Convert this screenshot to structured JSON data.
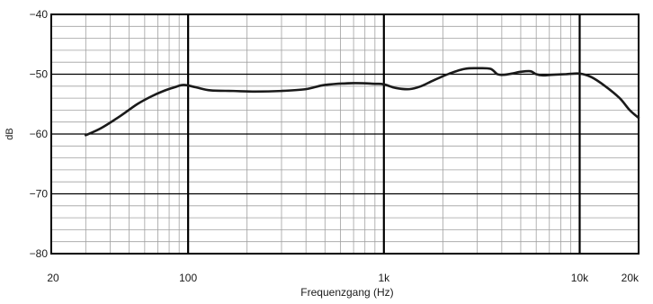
{
  "chart_data": {
    "type": "line",
    "title": "",
    "xlabel": "Frequenzgang (Hz)",
    "ylabel": "dB",
    "xscale": "log",
    "xlim": [
      20,
      20000
    ],
    "ylim": [
      -80,
      -40
    ],
    "grid": true,
    "x_ticks": [
      {
        "value": 20,
        "label": "20"
      },
      {
        "value": 100,
        "label": "100"
      },
      {
        "value": 1000,
        "label": "1k"
      },
      {
        "value": 10000,
        "label": "10k"
      },
      {
        "value": 20000,
        "label": "20k"
      }
    ],
    "y_ticks": [
      {
        "value": -40,
        "label": "−40"
      },
      {
        "value": -50,
        "label": "−50"
      },
      {
        "value": -60,
        "label": "−60"
      },
      {
        "value": -70,
        "label": "−70"
      },
      {
        "value": -80,
        "label": "−80"
      }
    ],
    "series": [
      {
        "x": [
          30,
          36,
          45,
          55,
          65,
          75,
          85,
          95,
          110,
          130,
          170,
          220,
          300,
          400,
          500,
          700,
          900,
          1000,
          1150,
          1350,
          1550,
          1800,
          2200,
          2600,
          3000,
          3500,
          3800,
          4100,
          4500,
          5000,
          5600,
          6000,
          6500,
          7200,
          8500,
          10000,
          11500,
          13500,
          16000,
          18000,
          20000
        ],
        "y": [
          -60.2,
          -59,
          -57,
          -55,
          -53.7,
          -52.8,
          -52.2,
          -51.8,
          -52.2,
          -52.7,
          -52.8,
          -52.9,
          -52.8,
          -52.5,
          -51.8,
          -51.5,
          -51.6,
          -51.7,
          -52.3,
          -52.5,
          -52,
          -51,
          -49.8,
          -49.1,
          -49,
          -49.1,
          -50,
          -50.1,
          -49.9,
          -49.6,
          -49.5,
          -50,
          -50.2,
          -50.1,
          -50,
          -49.9,
          -50.5,
          -52,
          -54,
          -56,
          -57.3
        ],
        "color": "#1a1a1a"
      }
    ]
  }
}
